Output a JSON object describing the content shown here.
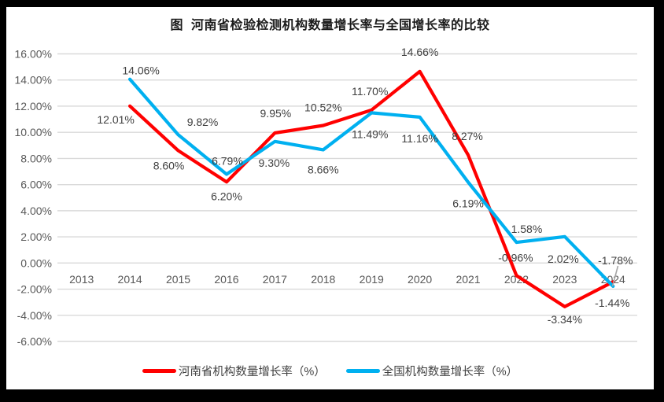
{
  "chart_data": {
    "type": "line",
    "title": "图  河南省检验检测机构数量增长率与全国增长率的比较",
    "categories": [
      "2013",
      "2014",
      "2015",
      "2016",
      "2017",
      "2018",
      "2019",
      "2020",
      "2021",
      "2022",
      "2023",
      "2024"
    ],
    "y_ticks": [
      "16.00%",
      "14.00%",
      "12.00%",
      "10.00%",
      "8.00%",
      "6.00%",
      "4.00%",
      "2.00%",
      "0.00%",
      "-2.00%",
      "-4.00%",
      "-6.00%"
    ],
    "ylim": [
      -6,
      16
    ],
    "grid": true,
    "legend_position": "bottom",
    "label_format": "0.00%",
    "series": [
      {
        "name": "河南省机构数量增长率（%）",
        "color": "#FF0000",
        "values": [
          null,
          12.01,
          8.6,
          6.2,
          9.95,
          10.52,
          11.7,
          14.66,
          8.27,
          -0.96,
          -3.34,
          -1.44
        ],
        "labels": [
          "",
          "12.01%",
          "8.60%",
          "6.20%",
          "9.95%",
          "10.52%",
          "11.70%",
          "14.66%",
          "8.27%",
          "-0.96%",
          "-3.34%",
          "-1.44%"
        ]
      },
      {
        "name": "全国机构数量增长率（%）",
        "color": "#00B0F0",
        "values": [
          null,
          14.06,
          9.82,
          6.79,
          9.3,
          8.66,
          11.49,
          11.16,
          6.19,
          1.58,
          2.02,
          -1.78
        ],
        "labels": [
          "",
          "14.06%",
          "9.82%",
          "6.79%",
          "9.30%",
          "8.66%",
          "11.49%",
          "11.16%",
          "6.19%",
          "1.58%",
          "2.02%",
          "-1.78%"
        ]
      }
    ]
  },
  "colors": {
    "henan_red": "#FF0000",
    "national_blue": "#00B0F0",
    "gridline": "#D9D9D9",
    "axis_text": "#595959",
    "data_label": "#404040",
    "leader_line": "#A6A6A6",
    "frame": "#000000",
    "panel": "#FFFFFF"
  }
}
